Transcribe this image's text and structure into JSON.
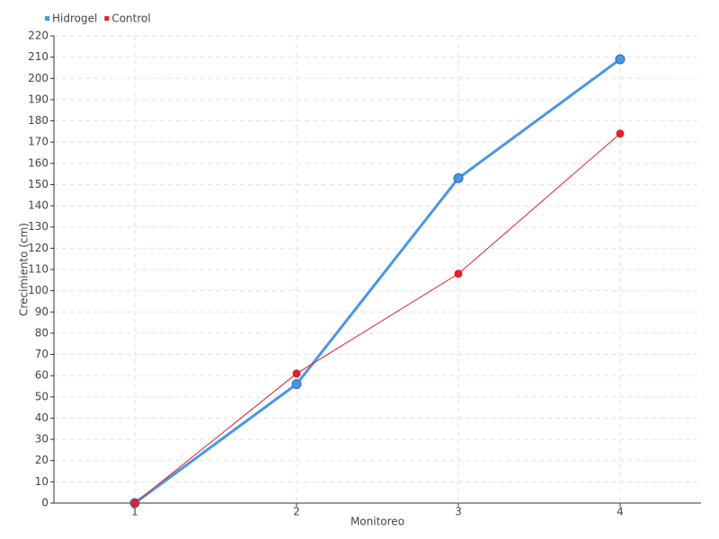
{
  "chart_data": {
    "type": "line",
    "x_label": "Monitoreo",
    "y_label": "Crecimiento (cm)",
    "categories": [
      "1",
      "2",
      "3",
      "4"
    ],
    "series": [
      {
        "name": "Hidrogel",
        "color": "#4a96e8",
        "values": [
          0,
          56,
          153,
          209
        ]
      },
      {
        "name": "Control",
        "color": "#e3202c",
        "values": [
          0,
          61,
          108,
          174
        ]
      }
    ],
    "ylim": [
      0,
      220
    ],
    "yticks": [
      0,
      10,
      20,
      30,
      40,
      50,
      60,
      70,
      80,
      90,
      100,
      110,
      120,
      130,
      140,
      150,
      160,
      170,
      180,
      190,
      200,
      210,
      220
    ],
    "grid": true,
    "legend": "top-left"
  }
}
